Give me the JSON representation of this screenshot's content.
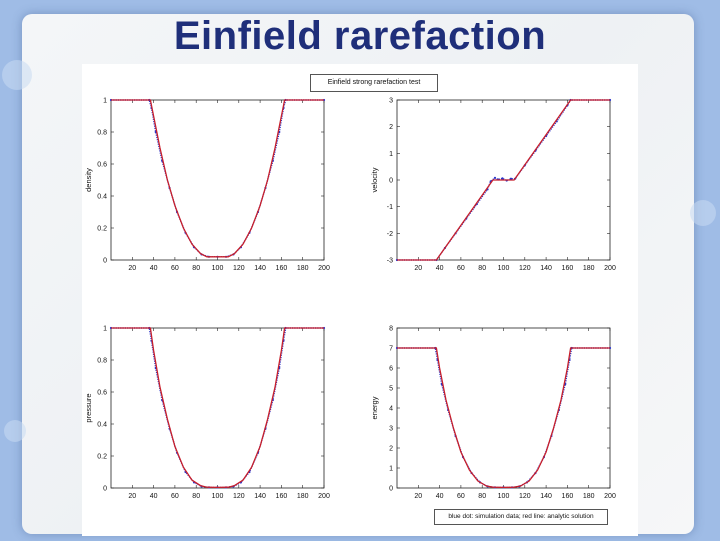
{
  "slide": {
    "title": "Einfield rarefaction"
  },
  "figure": {
    "title": "Einfield strong rarefaction test",
    "legend": "blue dot: simulation data; red line: analytic solution"
  },
  "colors": {
    "simulation": "#2b35c8",
    "analytic": "#c81f2a",
    "title": "#1f2f7a"
  },
  "chart_data": [
    {
      "type": "line",
      "ylabel": "density",
      "xlim": [
        0,
        200
      ],
      "ylim": [
        0,
        1
      ],
      "xticks": [
        20,
        40,
        60,
        80,
        100,
        120,
        140,
        160,
        180,
        200
      ],
      "yticks": [
        0,
        0.2,
        0.4,
        0.6,
        0.8,
        1
      ],
      "yticklabels": [
        "0",
        "0.2",
        "0.4",
        "0.6",
        "0.8",
        "1"
      ],
      "grid": false,
      "series": [
        {
          "style": "dots",
          "x": [
            0,
            36,
            38,
            42,
            48,
            55,
            62,
            70,
            78,
            85,
            92,
            100,
            108,
            115,
            122,
            130,
            138,
            145,
            152,
            158,
            162,
            164,
            200
          ],
          "y": [
            1,
            1,
            0.95,
            0.8,
            0.62,
            0.45,
            0.3,
            0.17,
            0.08,
            0.035,
            0.02,
            0.02,
            0.02,
            0.035,
            0.08,
            0.17,
            0.3,
            0.45,
            0.62,
            0.8,
            0.95,
            1,
            1
          ]
        },
        {
          "style": "line",
          "x": [
            0,
            37,
            40,
            46,
            53,
            60,
            68,
            76,
            84,
            90,
            100,
            110,
            116,
            124,
            132,
            140,
            147,
            154,
            160,
            163,
            200
          ],
          "y": [
            1,
            1,
            0.9,
            0.7,
            0.5,
            0.34,
            0.2,
            0.1,
            0.04,
            0.02,
            0.02,
            0.02,
            0.04,
            0.1,
            0.2,
            0.34,
            0.5,
            0.7,
            0.9,
            1,
            1
          ]
        }
      ]
    },
    {
      "type": "line",
      "ylabel": "velocity",
      "xlim": [
        0,
        200
      ],
      "ylim": [
        -3,
        3
      ],
      "xticks": [
        20,
        40,
        60,
        80,
        100,
        120,
        140,
        160,
        180,
        200
      ],
      "yticks": [
        -3,
        -2,
        -1,
        0,
        1,
        2,
        3
      ],
      "yticklabels": [
        "-3",
        "-2",
        "-1",
        "0",
        "1",
        "2",
        "3"
      ],
      "grid": false,
      "series": [
        {
          "style": "dots",
          "x": [
            0,
            37,
            45,
            55,
            65,
            75,
            85,
            88,
            92,
            95,
            99,
            103,
            107,
            111,
            120,
            130,
            140,
            150,
            160,
            163,
            200
          ],
          "y": [
            -3,
            -3,
            -2.55,
            -2,
            -1.45,
            -0.9,
            -0.35,
            -0.05,
            0.08,
            0.02,
            0.06,
            -0.02,
            0.05,
            0.05,
            0.55,
            1.1,
            1.65,
            2.2,
            2.8,
            3,
            3
          ]
        },
        {
          "style": "line",
          "x": [
            0,
            37,
            90,
            110,
            163,
            200
          ],
          "y": [
            -3,
            -3,
            0,
            0,
            3,
            3
          ]
        }
      ]
    },
    {
      "type": "line",
      "ylabel": "pressure",
      "xlim": [
        0,
        200
      ],
      "ylim": [
        0,
        1
      ],
      "xticks": [
        20,
        40,
        60,
        80,
        100,
        120,
        140,
        160,
        180,
        200
      ],
      "yticks": [
        0,
        0.2,
        0.4,
        0.6,
        0.8,
        1
      ],
      "yticklabels": [
        "0",
        "0.2",
        "0.4",
        "0.6",
        "0.8",
        "1"
      ],
      "grid": false,
      "series": [
        {
          "style": "dots",
          "x": [
            0,
            36,
            38,
            42,
            48,
            55,
            62,
            70,
            78,
            85,
            92,
            100,
            108,
            115,
            122,
            130,
            138,
            145,
            152,
            158,
            162,
            164,
            200
          ],
          "y": [
            1,
            1,
            0.92,
            0.75,
            0.55,
            0.37,
            0.22,
            0.1,
            0.035,
            0.01,
            0.004,
            0.004,
            0.004,
            0.01,
            0.035,
            0.1,
            0.22,
            0.37,
            0.55,
            0.75,
            0.92,
            1,
            1
          ]
        },
        {
          "style": "line",
          "x": [
            0,
            37,
            40,
            46,
            53,
            60,
            68,
            76,
            84,
            90,
            100,
            110,
            116,
            124,
            132,
            140,
            147,
            154,
            160,
            163,
            200
          ],
          "y": [
            1,
            1,
            0.86,
            0.63,
            0.43,
            0.26,
            0.13,
            0.05,
            0.015,
            0.005,
            0.004,
            0.005,
            0.015,
            0.05,
            0.13,
            0.26,
            0.43,
            0.63,
            0.86,
            1,
            1
          ]
        }
      ]
    },
    {
      "type": "line",
      "ylabel": "energy",
      "xlim": [
        0,
        200
      ],
      "ylim": [
        0,
        8
      ],
      "xticks": [
        20,
        40,
        60,
        80,
        100,
        120,
        140,
        160,
        180,
        200
      ],
      "yticks": [
        0,
        1,
        2,
        3,
        4,
        5,
        6,
        7,
        8
      ],
      "yticklabels": [
        "0",
        "1",
        "2",
        "3",
        "4",
        "5",
        "6",
        "7",
        "8"
      ],
      "grid": false,
      "series": [
        {
          "style": "dots",
          "x": [
            0,
            36,
            38,
            42,
            48,
            55,
            62,
            70,
            78,
            85,
            92,
            100,
            108,
            115,
            122,
            130,
            138,
            145,
            152,
            158,
            162,
            164,
            200
          ],
          "y": [
            7,
            7,
            6.4,
            5.2,
            3.9,
            2.6,
            1.55,
            0.75,
            0.28,
            0.08,
            0.03,
            0.03,
            0.03,
            0.08,
            0.28,
            0.75,
            1.55,
            2.6,
            3.9,
            5.2,
            6.4,
            7,
            7
          ]
        },
        {
          "style": "line",
          "x": [
            0,
            37,
            40,
            46,
            53,
            60,
            68,
            76,
            84,
            90,
            100,
            110,
            116,
            124,
            132,
            140,
            147,
            154,
            160,
            163,
            200
          ],
          "y": [
            7,
            7,
            6.0,
            4.4,
            3.0,
            1.8,
            0.9,
            0.35,
            0.1,
            0.04,
            0.03,
            0.04,
            0.1,
            0.35,
            0.9,
            1.8,
            3.0,
            4.4,
            6.0,
            7,
            7
          ]
        }
      ]
    }
  ]
}
